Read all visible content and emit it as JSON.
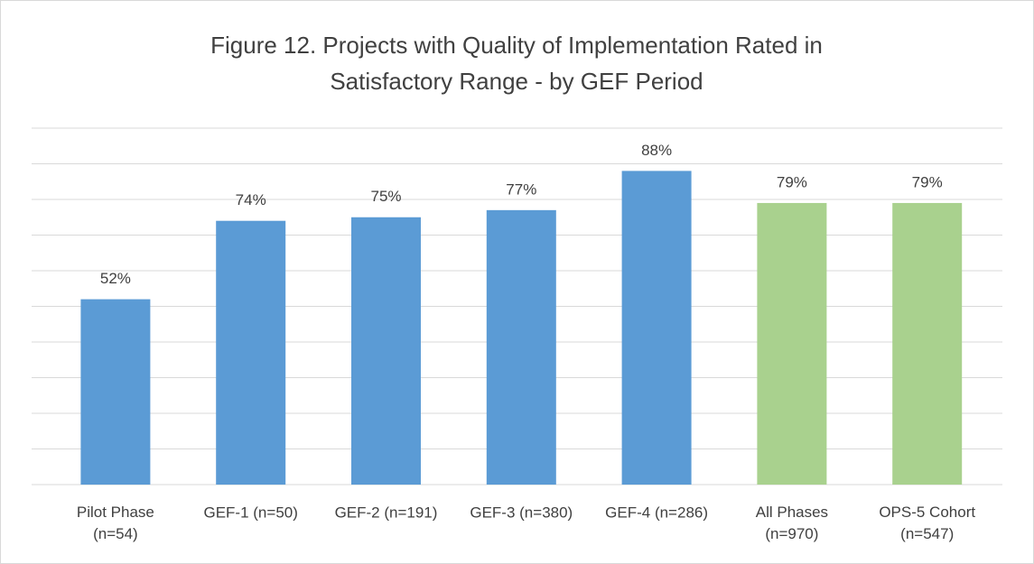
{
  "chart_data": {
    "type": "bar",
    "title": "Figure 12. Projects with Quality of Implementation Rated in\nSatisfactory Range - by GEF Period",
    "categories": [
      "Pilot Phase\n(n=54)",
      "GEF-1 (n=50)",
      "GEF-2 (n=191)",
      "GEF-3 (n=380)",
      "GEF-4 (n=286)",
      "All Phases\n(n=970)",
      "OPS-5 Cohort\n(n=547)"
    ],
    "values": [
      52,
      74,
      75,
      77,
      88,
      79,
      79
    ],
    "value_labels": [
      "52%",
      "74%",
      "75%",
      "77%",
      "88%",
      "79%",
      "79%"
    ],
    "colors": [
      "#5b9bd5",
      "#5b9bd5",
      "#5b9bd5",
      "#5b9bd5",
      "#5b9bd5",
      "#a9d18e",
      "#a9d18e"
    ],
    "ylim": [
      0,
      100
    ],
    "yticks": [
      0,
      10,
      20,
      30,
      40,
      50,
      60,
      70,
      80,
      90,
      100
    ],
    "grid": true
  }
}
